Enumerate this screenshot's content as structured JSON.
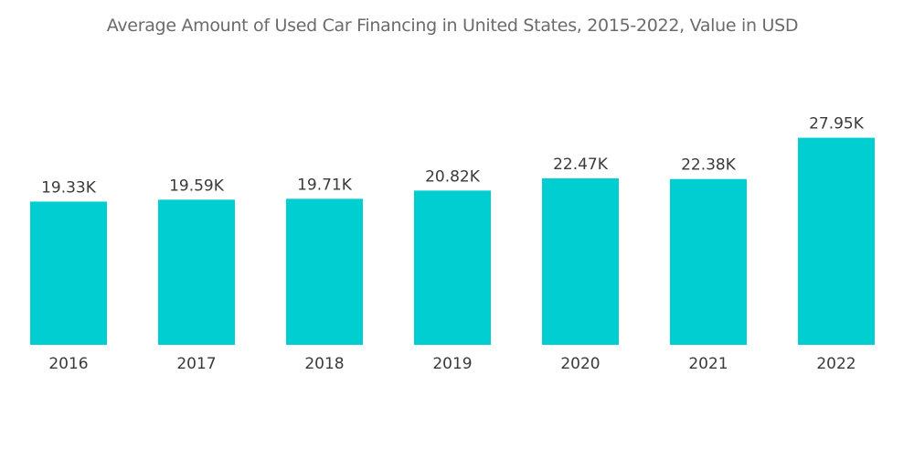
{
  "chart_data": {
    "type": "bar",
    "title": "Average Amount of Used Car Financing in United States, 2015-2022, Value in USD",
    "xlabel": "",
    "ylabel": "",
    "categories": [
      "2016",
      "2017",
      "2018",
      "2019",
      "2020",
      "2021",
      "2022"
    ],
    "values": [
      19330,
      19590,
      19710,
      20820,
      22470,
      22380,
      27950
    ],
    "value_labels": [
      "19.33K",
      "19.59K",
      "19.71K",
      "20.82K",
      "22.47K",
      "22.38K",
      "27.95K"
    ],
    "ylim": [
      0,
      30000
    ],
    "grid": false,
    "legend": "none",
    "bar_color": "#00ced1"
  }
}
